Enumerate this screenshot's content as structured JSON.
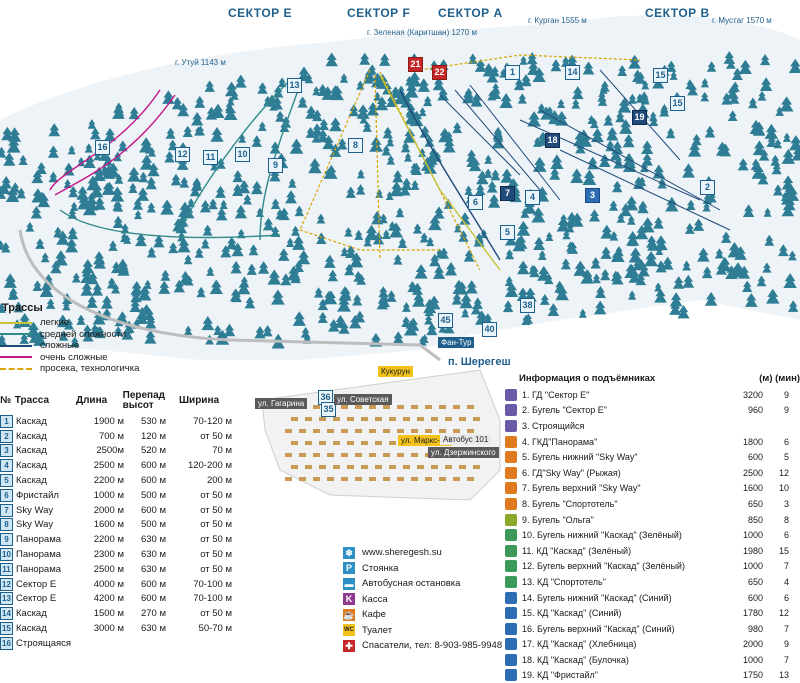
{
  "map": {
    "sectors": [
      "СЕКТОР Е",
      "СЕКТОР F",
      "СЕКТОР А",
      "СЕКТОР В"
    ],
    "peaks": {
      "kurgan": "г. Курган 1555 м",
      "mustag": "г. Мустаг 1570 м",
      "zelenaya": "г. Зеленая (Каритшан) 1270 м",
      "utuy": "г. Утуй 1143 м"
    },
    "village": "п. Шерегеш",
    "fan_tour": "Фан-Тур",
    "streets": [
      "ул. Гагарина",
      "ул. Советская",
      "ул. Дзержинского"
    ],
    "village_labels": [
      "Кукурун",
      "ул. Маркс-Ра",
      "Автобус 101"
    ],
    "colors": {
      "snow": "#eef3f7",
      "tree": "#2f7d95",
      "easy": "#c8c23a",
      "medium": "#2f8a8a",
      "hard": "#1f4a7a",
      "very_hard": "#c4178a",
      "tech": "#d9a400"
    }
  },
  "legend": {
    "title": "Трассы",
    "items": [
      {
        "label": "легкие",
        "color": "#c8c23a"
      },
      {
        "label": "средней сложности",
        "color": "#2f8a8a"
      },
      {
        "label": "сложные",
        "color": "#1f4a7a"
      },
      {
        "label": "очень сложные",
        "color": "#c4178a"
      },
      {
        "label": "просека, технологичка",
        "color": "#d9a400"
      }
    ]
  },
  "trails": {
    "headers": [
      "№",
      "Трасса",
      "Длина",
      "Перепад высот",
      "Ширина"
    ],
    "rows": [
      {
        "n": "1",
        "name": "Каскад",
        "len": "1900 м",
        "drop": "530 м",
        "width": "70-120 м"
      },
      {
        "n": "2",
        "name": "Каскад",
        "len": "700 м",
        "drop": "120 м",
        "width": "от 50 м"
      },
      {
        "n": "3",
        "name": "Каскад",
        "len": "2500м",
        "drop": "520 м",
        "width": "70 м"
      },
      {
        "n": "4",
        "name": "Каскад",
        "len": "2500 м",
        "drop": "600 м",
        "width": "120-200 м"
      },
      {
        "n": "5",
        "name": "Каскад",
        "len": "2200 м",
        "drop": "600 м",
        "width": "200 м"
      },
      {
        "n": "6",
        "name": "Фристайл",
        "len": "1000 м",
        "drop": "500 м",
        "width": "от 50 м"
      },
      {
        "n": "7",
        "name": "Sky Way",
        "len": "2000 м",
        "drop": "600 м",
        "width": "от 50 м"
      },
      {
        "n": "8",
        "name": "Sky Way",
        "len": "1600 м",
        "drop": "500 м",
        "width": "от 50 м"
      },
      {
        "n": "9",
        "name": "Панорама",
        "len": "2200 м",
        "drop": "630 м",
        "width": "от 50 м"
      },
      {
        "n": "10",
        "name": "Панорама",
        "len": "2300 м",
        "drop": "630 м",
        "width": "от 50 м"
      },
      {
        "n": "11",
        "name": "Панорама",
        "len": "2500 м",
        "drop": "630 м",
        "width": "от 50 м"
      },
      {
        "n": "12",
        "name": "Сектор Е",
        "len": "4000 м",
        "drop": "600 м",
        "width": "70-100 м"
      },
      {
        "n": "13",
        "name": "Сектор Е",
        "len": "4200 м",
        "drop": "600 м",
        "width": "70-100 м"
      },
      {
        "n": "14",
        "name": "Каскад",
        "len": "1500 м",
        "drop": "270 м",
        "width": "от 50 м"
      },
      {
        "n": "15",
        "name": "Каскад",
        "len": "3000 м",
        "drop": "630 м",
        "width": "50-70 м"
      },
      {
        "n": "16",
        "name": "Строящаяся",
        "len": "",
        "drop": "",
        "width": ""
      }
    ]
  },
  "keys": [
    {
      "icon": "snowflake-icon",
      "label": "www.sheregesh.su",
      "color": "#2d8fc4"
    },
    {
      "icon": "parking-icon",
      "label": "Стоянка",
      "color": "#2d8fc4"
    },
    {
      "icon": "bus-stop-icon",
      "label": "Автобусная остановка",
      "color": "#2d8fc4"
    },
    {
      "icon": "ticket-office-icon",
      "label": "Касса",
      "color": "#8e3a8e"
    },
    {
      "icon": "cafe-icon",
      "label": "Кафе",
      "color": "#e07a1f"
    },
    {
      "icon": "toilet-icon",
      "label": "Туалет",
      "color": "#f3c21b"
    },
    {
      "icon": "rescue-icon",
      "label": "Спасатели, тел: 8-903-985-9948",
      "color": "#c62828"
    }
  ],
  "lifts": {
    "title": "Информация о подъёмниках",
    "col_len": "(м)",
    "col_min": "(мин)",
    "rows": [
      {
        "name": "1. ГД \"Сектор Е\"",
        "len": "3200",
        "min": "9",
        "color": "#6a5aa8"
      },
      {
        "name": "2. Бугель \"Сектор Е\"",
        "len": "960",
        "min": "9",
        "color": "#6a5aa8"
      },
      {
        "name": "3. Строящийся",
        "len": "",
        "min": "",
        "color": "#6a5aa8"
      },
      {
        "name": "4. ГКД\"Панорама\"",
        "len": "1800",
        "min": "6",
        "color": "#e07a1f"
      },
      {
        "name": "5. Бугель нижний \"Sky Way\"",
        "len": "600",
        "min": "5",
        "color": "#e07a1f"
      },
      {
        "name": "6. ГД\"Sky Way\" (Рыжая)",
        "len": "2500",
        "min": "12",
        "color": "#e07a1f"
      },
      {
        "name": "7. Бугель верхний \"Sky Way\"",
        "len": "1600",
        "min": "10",
        "color": "#e07a1f"
      },
      {
        "name": "8. Бугель \"Спортотель\"",
        "len": "650",
        "min": "3",
        "color": "#e07a1f"
      },
      {
        "name": "9. Бугель \"Ольга\"",
        "len": "850",
        "min": "8",
        "color": "#8aa82a"
      },
      {
        "name": "10. Бугель нижний \"Каскад\" (Зелёный)",
        "len": "1000",
        "min": "6",
        "color": "#3b9a5a"
      },
      {
        "name": "11. КД \"Каскад\" (Зелёный)",
        "len": "1980",
        "min": "15",
        "color": "#3b9a5a"
      },
      {
        "name": "12. Бугель верхний \"Каскад\" (Зелёный)",
        "len": "1000",
        "min": "7",
        "color": "#3b9a5a"
      },
      {
        "name": "13. КД \"Спортотель\"",
        "len": "650",
        "min": "4",
        "color": "#3b9a5a"
      },
      {
        "name": "14. Бугель нижний \"Каскад\" (Синий)",
        "len": "600",
        "min": "6",
        "color": "#2d6db3"
      },
      {
        "name": "15. КД \"Каскад\" (Синий)",
        "len": "1780",
        "min": "12",
        "color": "#2d6db3"
      },
      {
        "name": "16. Бугель верхний \"Каскад\" (Синий)",
        "len": "980",
        "min": "7",
        "color": "#2d6db3"
      },
      {
        "name": "17. КД \"Каскад\" (Хлебница)",
        "len": "2000",
        "min": "9",
        "color": "#2d6db3"
      },
      {
        "name": "18. КД \"Каскад\" (Булочка)",
        "len": "1000",
        "min": "7",
        "color": "#2d6db3"
      },
      {
        "name": "19. КД \"Фристайл\"",
        "len": "1750",
        "min": "13",
        "color": "#2d6db3"
      }
    ]
  }
}
